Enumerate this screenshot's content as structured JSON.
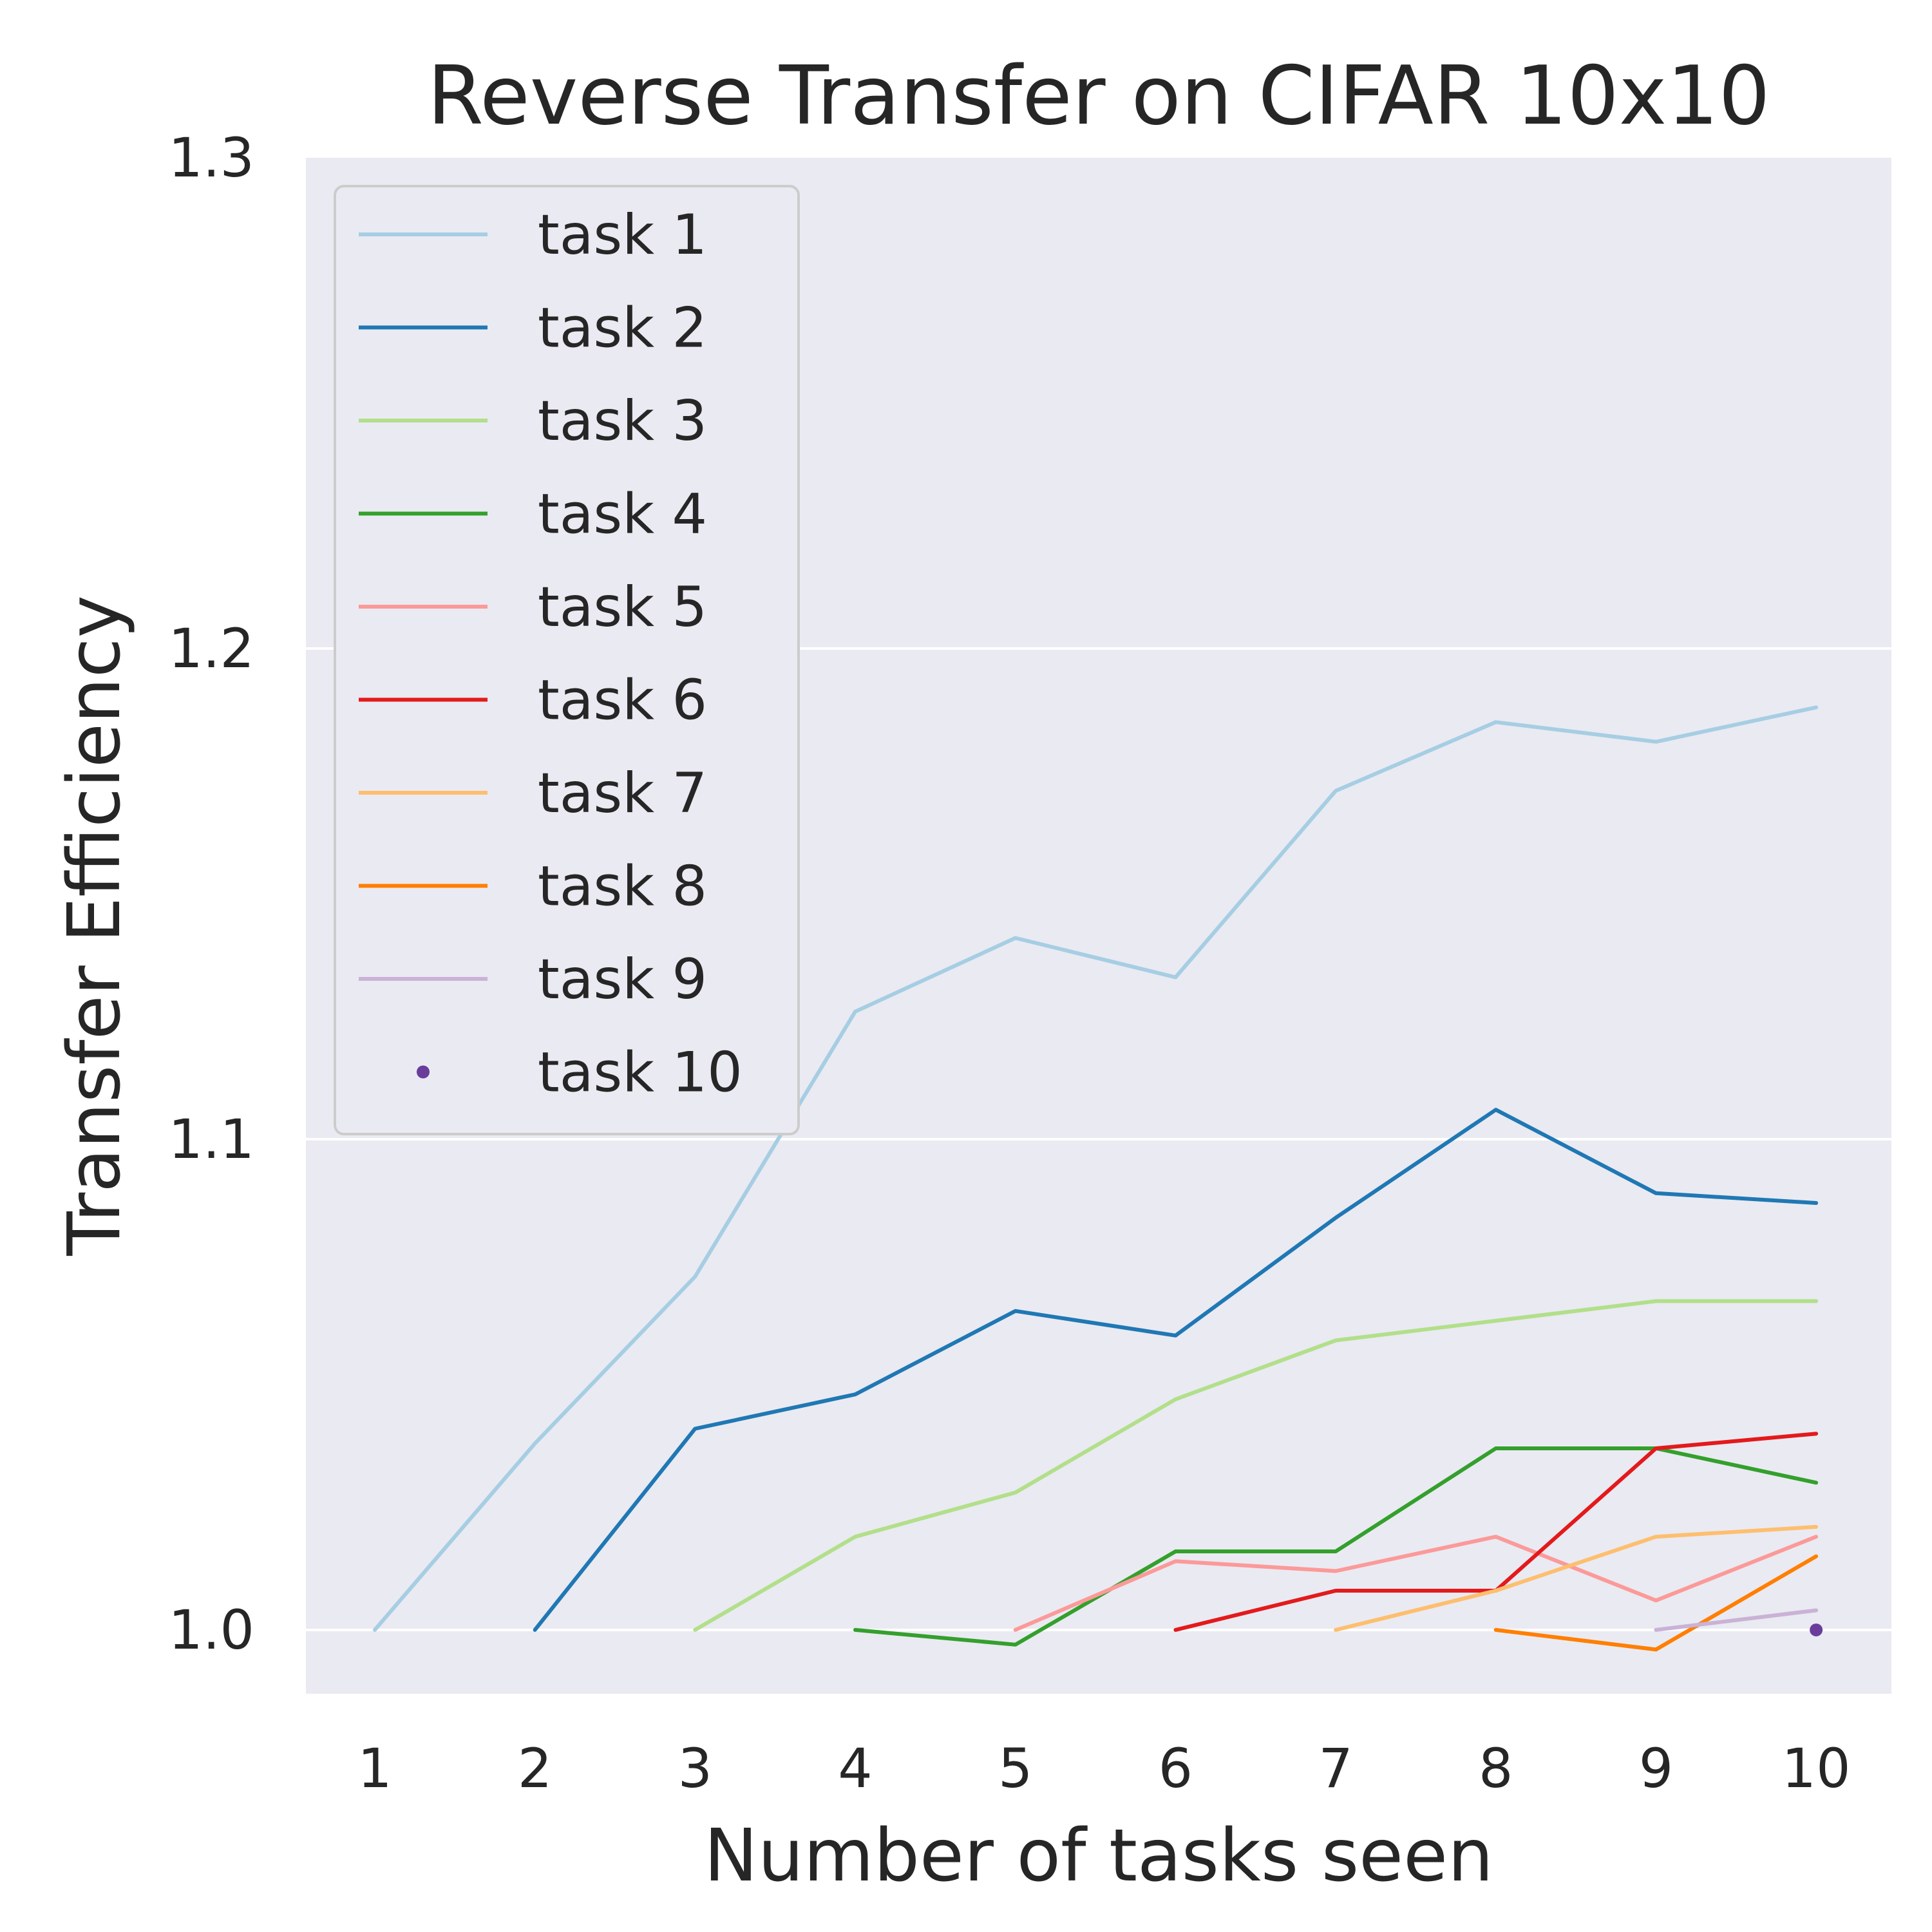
{
  "chart_data": {
    "type": "line",
    "title": "Reverse Transfer on CIFAR 10x10",
    "xlabel": "Number of tasks seen",
    "ylabel": "Transfer Efficiency",
    "xlim": [
      0.57,
      10.47
    ],
    "ylim": [
      0.987,
      1.3
    ],
    "x_ticks": [
      1,
      2,
      3,
      4,
      5,
      6,
      7,
      8,
      9,
      10
    ],
    "x_tick_labels": [
      "1",
      "2",
      "3",
      "4",
      "5",
      "6",
      "7",
      "8",
      "9",
      "10"
    ],
    "y_ticks": [
      1.0,
      1.1,
      1.2,
      1.3
    ],
    "y_tick_labels": [
      "1.0",
      "1.1",
      "1.2",
      "1.3"
    ],
    "grid": true,
    "legend_position": "upper-left",
    "background_color": "#eaeaf2",
    "series": [
      {
        "name": "task 1",
        "color": "#a6cee3",
        "mode": "line",
        "x": [
          1,
          2,
          3,
          4,
          5,
          6,
          7,
          8,
          9,
          10
        ],
        "y": [
          1.0,
          1.038,
          1.072,
          1.126,
          1.141,
          1.133,
          1.171,
          1.185,
          1.181,
          1.188
        ]
      },
      {
        "name": "task 2",
        "color": "#1f78b4",
        "mode": "line",
        "x": [
          2,
          3,
          4,
          5,
          6,
          7,
          8,
          9,
          10
        ],
        "y": [
          1.0,
          1.041,
          1.048,
          1.065,
          1.06,
          1.084,
          1.106,
          1.089,
          1.087
        ]
      },
      {
        "name": "task 3",
        "color": "#b2df8a",
        "mode": "line",
        "x": [
          3,
          4,
          5,
          6,
          7,
          8,
          9,
          10
        ],
        "y": [
          1.0,
          1.019,
          1.028,
          1.047,
          1.059,
          1.063,
          1.067,
          1.067
        ]
      },
      {
        "name": "task 4",
        "color": "#33a02c",
        "mode": "line",
        "x": [
          4,
          5,
          6,
          7,
          8,
          9,
          10
        ],
        "y": [
          1.0,
          0.997,
          1.016,
          1.016,
          1.037,
          1.037,
          1.03
        ]
      },
      {
        "name": "task 5",
        "color": "#fb9a99",
        "mode": "line",
        "x": [
          5,
          6,
          7,
          8,
          9,
          10
        ],
        "y": [
          1.0,
          1.014,
          1.012,
          1.019,
          1.006,
          1.019
        ]
      },
      {
        "name": "task 6",
        "color": "#e31a1c",
        "mode": "line",
        "x": [
          6,
          7,
          8,
          9,
          10
        ],
        "y": [
          1.0,
          1.008,
          1.008,
          1.037,
          1.04
        ]
      },
      {
        "name": "task 7",
        "color": "#fdbf6f",
        "mode": "line",
        "x": [
          7,
          8,
          9,
          10
        ],
        "y": [
          1.0,
          1.008,
          1.019,
          1.021
        ]
      },
      {
        "name": "task 8",
        "color": "#ff7f00",
        "mode": "line",
        "x": [
          8,
          9,
          10
        ],
        "y": [
          1.0,
          0.996,
          1.015
        ]
      },
      {
        "name": "task 9",
        "color": "#cab2d6",
        "mode": "line",
        "x": [
          9,
          10
        ],
        "y": [
          1.0,
          1.004
        ]
      },
      {
        "name": "task 10",
        "color": "#6a3d9a",
        "mode": "point",
        "x": [
          10
        ],
        "y": [
          1.0
        ]
      }
    ]
  }
}
